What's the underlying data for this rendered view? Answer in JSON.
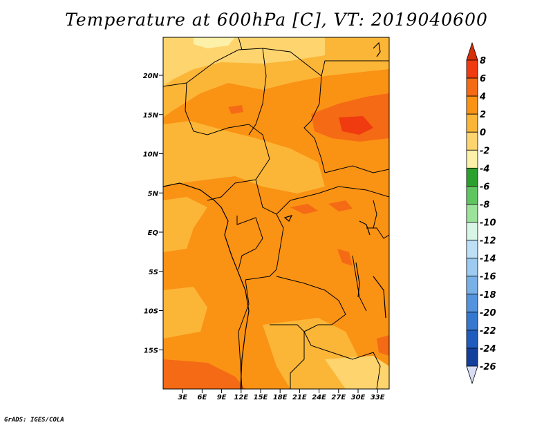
{
  "title": "Temperature at 600hPa [C], VT: 2019040600",
  "footer": "GrADS: IGES/COLA",
  "map": {
    "lat_range": [
      -19,
      25
    ],
    "lon_range": [
      0,
      35
    ],
    "lat_ticks": [
      "20N",
      "15N",
      "10N",
      "5N",
      "EQ",
      "5S",
      "10S",
      "15S"
    ],
    "lon_ticks": [
      "3E",
      "6E",
      "9E",
      "12E",
      "15E",
      "18E",
      "21E",
      "24E",
      "27E",
      "30E",
      "33E"
    ]
  },
  "colorbar": {
    "labels": [
      "8",
      "6",
      "4",
      "2",
      "0",
      "-2",
      "-4",
      "-6",
      "-8",
      "-10",
      "-12",
      "-14",
      "-16",
      "-18",
      "-20",
      "-22",
      "-24",
      "-26"
    ],
    "colors": [
      "#f03a0f",
      "#f56a14",
      "#fa9214",
      "#fcb637",
      "#fdd46e",
      "#fdf0a8",
      "#2ca02c",
      "#5fc55f",
      "#9be39b",
      "#d8f5e6",
      "#bde0f7",
      "#9ccaf0",
      "#78b1e8",
      "#5494de",
      "#3578d0",
      "#1f5cbe",
      "#133f9c",
      "#0a1f6e"
    ],
    "top_arrow_color": "#d8300a",
    "bottom_arrow_color": "#d9dcf5"
  }
}
